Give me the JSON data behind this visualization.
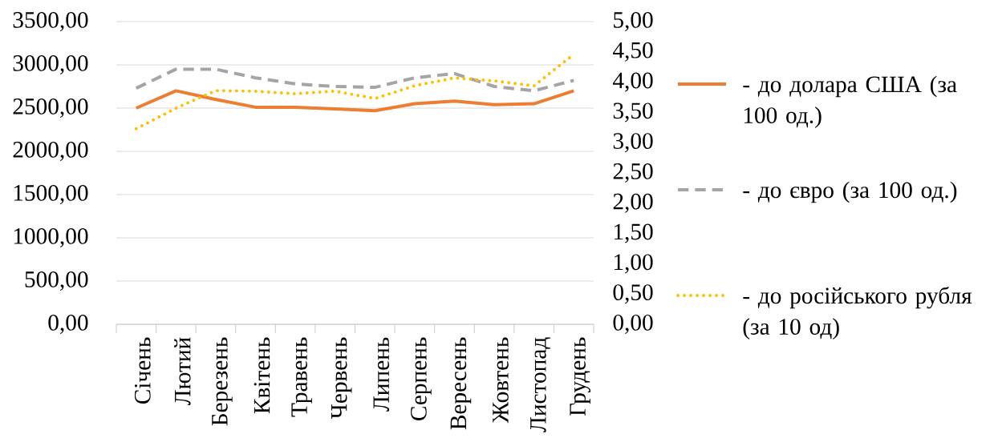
{
  "chart_data": {
    "type": "line",
    "categories": [
      "Січень",
      "Лютий",
      "Березень",
      "Квітень",
      "Травень",
      "Червень",
      "Липень",
      "Серпень",
      "Вересень",
      "Жовтень",
      "Листопад",
      "Грудень"
    ],
    "series": [
      {
        "name": "- до долара США (за 100 од.)",
        "color": "#ed7d31",
        "line_style": "solid",
        "values": [
          2500,
          2700,
          2600,
          2510,
          2510,
          2490,
          2470,
          2550,
          2580,
          2540,
          2550,
          2700
        ]
      },
      {
        "name": "- до євро (за 100 од.)",
        "color": "#a5a5a5",
        "line_style": "dashed",
        "values": [
          2730,
          2950,
          2950,
          2850,
          2780,
          2750,
          2740,
          2850,
          2900,
          2750,
          2700,
          2820
        ]
      },
      {
        "name": "- до російського рубля (за 10 од)",
        "color": "#ffc000",
        "line_style": "dotted",
        "axis": "y2",
        "values": [
          3.23,
          3.57,
          3.86,
          3.85,
          3.81,
          3.85,
          3.73,
          3.94,
          4.07,
          4.02,
          3.94,
          4.46
        ]
      }
    ],
    "ylim": [
      0,
      3500
    ],
    "yticks": [
      {
        "value": 0,
        "label": "0,00"
      },
      {
        "value": 500,
        "label": "500,00"
      },
      {
        "value": 1000,
        "label": "1000,00"
      },
      {
        "value": 1500,
        "label": "1500,00"
      },
      {
        "value": 2000,
        "label": "2000,00"
      },
      {
        "value": 2500,
        "label": "2500,00"
      },
      {
        "value": 3000,
        "label": "3000,00"
      },
      {
        "value": 3500,
        "label": "3500,00"
      }
    ],
    "y2lim": [
      0,
      5
    ],
    "y2ticks": [
      {
        "value": 0,
        "label": "0,00"
      },
      {
        "value": 0.5,
        "label": "0,50"
      },
      {
        "value": 1,
        "label": "1,00"
      },
      {
        "value": 1.5,
        "label": "1,50"
      },
      {
        "value": 2,
        "label": "2,00"
      },
      {
        "value": 2.5,
        "label": "2,50"
      },
      {
        "value": 3,
        "label": "3,00"
      },
      {
        "value": 3.5,
        "label": "3,50"
      },
      {
        "value": 4,
        "label": "4,00"
      },
      {
        "value": 4.5,
        "label": "4,50"
      },
      {
        "value": 5,
        "label": "5,00"
      }
    ],
    "grid": "y",
    "legend": "right"
  }
}
